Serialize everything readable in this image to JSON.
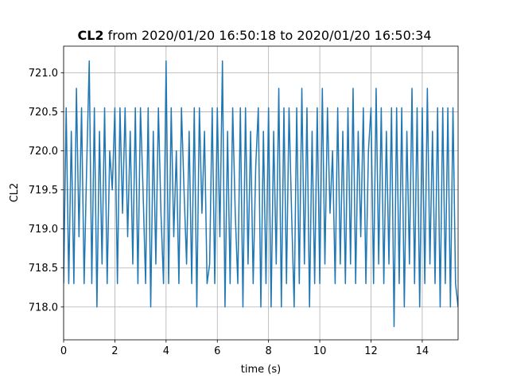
{
  "chart_data": {
    "type": "line",
    "title": {
      "name": "CL2",
      "text": "from 2020/01/20 16:50:18 to 2020/01/20 16:50:34"
    },
    "xlabel": "time (s)",
    "ylabel": "CL2",
    "color": "#1f77b4",
    "grid": true,
    "xlim": [
      0,
      15.4
    ],
    "xticks": [
      0,
      2,
      4,
      6,
      8,
      10,
      12,
      14
    ],
    "ylim": [
      717.58,
      721.34
    ],
    "yticks": [
      {
        "value": 718,
        "label": "718.0"
      },
      718.5,
      {
        "value": 719,
        "label": "719.0"
      },
      719.5,
      {
        "value": 720,
        "label": "720.0"
      },
      720.5,
      {
        "value": 721,
        "label": "721.0"
      }
    ],
    "x": [
      0,
      0.1,
      0.2,
      0.3,
      0.4,
      0.5,
      0.6,
      0.7,
      0.8,
      0.9,
      1,
      1.1,
      1.2,
      1.3,
      1.4,
      1.5,
      1.6,
      1.7,
      1.8,
      1.9,
      2,
      2.1,
      2.2,
      2.3,
      2.4,
      2.5,
      2.6,
      2.7,
      2.8,
      2.9,
      3,
      3.1,
      3.2,
      3.3,
      3.4,
      3.5,
      3.6,
      3.7,
      3.8,
      3.9,
      4,
      4.1,
      4.2,
      4.3,
      4.4,
      4.5,
      4.6,
      4.7,
      4.8,
      4.9,
      5,
      5.1,
      5.2,
      5.3,
      5.4,
      5.5,
      5.6,
      5.7,
      5.8,
      5.9,
      6,
      6.1,
      6.2,
      6.3,
      6.4,
      6.5,
      6.6,
      6.7,
      6.8,
      6.9,
      7,
      7.1,
      7.2,
      7.3,
      7.4,
      7.5,
      7.6,
      7.7,
      7.8,
      7.9,
      8,
      8.1,
      8.2,
      8.3,
      8.4,
      8.5,
      8.6,
      8.7,
      8.8,
      8.9,
      9,
      9.1,
      9.2,
      9.3,
      9.4,
      9.5,
      9.6,
      9.7,
      9.8,
      9.9,
      10,
      10.1,
      10.2,
      10.3,
      10.4,
      10.5,
      10.6,
      10.7,
      10.8,
      10.9,
      11,
      11.1,
      11.2,
      11.3,
      11.4,
      11.5,
      11.6,
      11.7,
      11.8,
      11.9,
      12,
      12.1,
      12.2,
      12.3,
      12.4,
      12.5,
      12.6,
      12.7,
      12.8,
      12.9,
      13,
      13.1,
      13.2,
      13.3,
      13.4,
      13.5,
      13.6,
      13.7,
      13.8,
      13.9,
      14,
      14.1,
      14.2,
      14.3,
      14.4,
      14.5,
      14.6,
      14.7,
      14.8,
      14.9,
      15,
      15.1,
      15.2,
      15.3,
      15.4
    ],
    "values": [
      718.3,
      720.55,
      718.3,
      720.25,
      718.3,
      720.8,
      718.9,
      720.55,
      718.3,
      719.8,
      721.15,
      718.3,
      720.55,
      718.0,
      720.25,
      718.55,
      720.55,
      718.3,
      720.0,
      719.5,
      720.55,
      718.3,
      720.55,
      719.2,
      720.55,
      718.9,
      720.25,
      718.55,
      720.55,
      718.3,
      720.55,
      719.5,
      718.3,
      720.55,
      718.0,
      720.25,
      718.55,
      720.55,
      719.2,
      718.3,
      721.15,
      718.3,
      720.55,
      718.9,
      720.0,
      718.3,
      720.55,
      719.5,
      718.55,
      720.25,
      718.3,
      720.55,
      718.0,
      720.55,
      719.2,
      720.25,
      718.3,
      718.55,
      720.55,
      718.3,
      720.55,
      718.9,
      721.15,
      718.0,
      720.25,
      718.3,
      720.55,
      719.2,
      718.3,
      720.55,
      718.0,
      720.55,
      718.55,
      720.25,
      718.3,
      719.8,
      720.55,
      718.0,
      720.25,
      718.3,
      720.55,
      718.0,
      720.25,
      718.55,
      720.8,
      718.0,
      720.55,
      718.3,
      720.55,
      719.2,
      718.0,
      720.55,
      718.3,
      720.8,
      718.55,
      720.55,
      718.0,
      720.25,
      718.3,
      720.55,
      718.3,
      720.8,
      718.55,
      720.55,
      719.2,
      720.0,
      718.3,
      720.55,
      718.55,
      720.25,
      718.3,
      720.55,
      718.55,
      720.8,
      718.3,
      720.25,
      718.9,
      720.55,
      718.3,
      720.0,
      720.55,
      718.3,
      720.8,
      718.55,
      720.55,
      718.3,
      720.25,
      718.55,
      720.55,
      717.75,
      720.55,
      718.3,
      720.55,
      718.0,
      720.25,
      718.55,
      720.8,
      718.3,
      720.55,
      718.0,
      720.55,
      718.3,
      720.8,
      718.55,
      720.25,
      718.3,
      720.55,
      718.0,
      720.55,
      718.3,
      720.55,
      718.0,
      720.55,
      718.3,
      718.0
    ]
  }
}
